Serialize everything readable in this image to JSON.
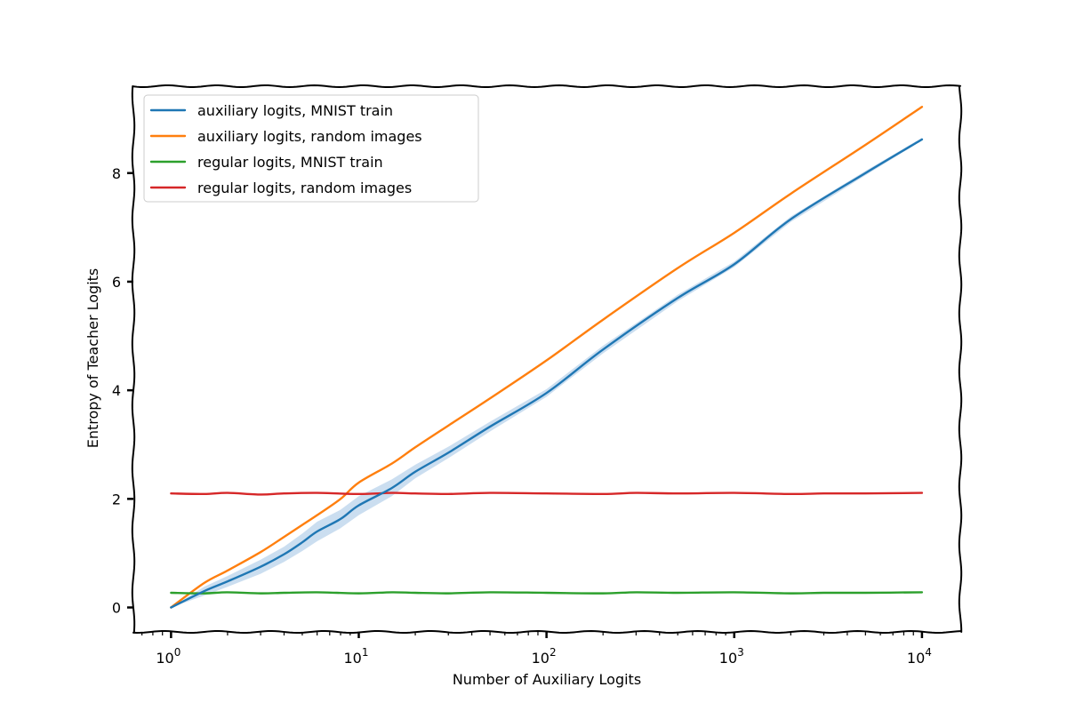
{
  "chart_data": {
    "type": "line",
    "title": "",
    "xlabel": "Number of Auxiliary Logits",
    "ylabel": "Entropy of Teacher Logits",
    "xscale": "log",
    "xlim": [
      0.63,
      16000
    ],
    "ylim": [
      -0.45,
      9.6
    ],
    "xticks": [
      {
        "value": 1,
        "base": "10",
        "exp": "0"
      },
      {
        "value": 10,
        "base": "10",
        "exp": "1"
      },
      {
        "value": 100,
        "base": "10",
        "exp": "2"
      },
      {
        "value": 1000,
        "base": "10",
        "exp": "3"
      },
      {
        "value": 10000,
        "base": "10",
        "exp": "4"
      }
    ],
    "yticks": [
      {
        "value": 0,
        "label": "0"
      },
      {
        "value": 2,
        "label": "2"
      },
      {
        "value": 4,
        "label": "4"
      },
      {
        "value": 6,
        "label": "6"
      },
      {
        "value": 8,
        "label": "8"
      }
    ],
    "grid": false,
    "legend_position": "top-left",
    "series": [
      {
        "name": "auxiliary logits, MNIST train",
        "color": "#1f77b4",
        "has_band": true,
        "band_color": "#a9c8e6",
        "x": [
          1,
          1.5,
          2,
          3,
          4,
          5,
          6,
          8,
          10,
          15,
          20,
          30,
          50,
          100,
          200,
          500,
          1000,
          2000,
          5000,
          10000
        ],
        "y": [
          0,
          0.3,
          0.48,
          0.75,
          0.98,
          1.2,
          1.4,
          1.63,
          1.88,
          2.2,
          2.5,
          2.85,
          3.33,
          3.95,
          4.75,
          5.7,
          6.32,
          7.15,
          8.0,
          8.62
        ],
        "band_lower": [
          0,
          0.22,
          0.38,
          0.62,
          0.84,
          1.04,
          1.22,
          1.46,
          1.7,
          2.05,
          2.38,
          2.75,
          3.24,
          3.88,
          4.68,
          5.64,
          6.27,
          7.1,
          7.96,
          8.6
        ],
        "band_upper": [
          0,
          0.38,
          0.58,
          0.88,
          1.12,
          1.36,
          1.58,
          1.8,
          2.05,
          2.36,
          2.63,
          2.96,
          3.42,
          4.02,
          4.82,
          5.76,
          6.37,
          7.2,
          8.04,
          8.65
        ]
      },
      {
        "name": "auxiliary logits, random images",
        "color": "#ff7f0e",
        "has_band": false,
        "x": [
          1,
          1.5,
          2,
          3,
          4,
          5,
          6,
          8,
          10,
          15,
          20,
          30,
          50,
          100,
          200,
          500,
          1000,
          2000,
          5000,
          10000
        ],
        "y": [
          0,
          0.45,
          0.68,
          1.02,
          1.3,
          1.52,
          1.7,
          2.0,
          2.3,
          2.65,
          2.95,
          3.35,
          3.85,
          4.55,
          5.3,
          6.25,
          6.9,
          7.62,
          8.52,
          9.22
        ]
      },
      {
        "name": "regular logits, MNIST train",
        "color": "#2ca02c",
        "has_band": false,
        "x": [
          1,
          1.5,
          2,
          3,
          4,
          6,
          10,
          15,
          20,
          30,
          50,
          100,
          200,
          300,
          500,
          1000,
          2000,
          3000,
          5000,
          10000
        ],
        "y": [
          0.27,
          0.26,
          0.28,
          0.26,
          0.27,
          0.28,
          0.26,
          0.28,
          0.27,
          0.26,
          0.28,
          0.27,
          0.26,
          0.28,
          0.27,
          0.28,
          0.26,
          0.27,
          0.27,
          0.28
        ]
      },
      {
        "name": "regular logits, random images",
        "color": "#d62728",
        "has_band": false,
        "x": [
          1,
          1.5,
          2,
          3,
          4,
          6,
          10,
          15,
          20,
          30,
          50,
          100,
          200,
          300,
          500,
          1000,
          2000,
          3000,
          5000,
          10000
        ],
        "y": [
          2.1,
          2.09,
          2.11,
          2.08,
          2.1,
          2.11,
          2.09,
          2.11,
          2.1,
          2.09,
          2.11,
          2.1,
          2.09,
          2.11,
          2.1,
          2.11,
          2.09,
          2.1,
          2.1,
          2.11
        ]
      }
    ]
  }
}
